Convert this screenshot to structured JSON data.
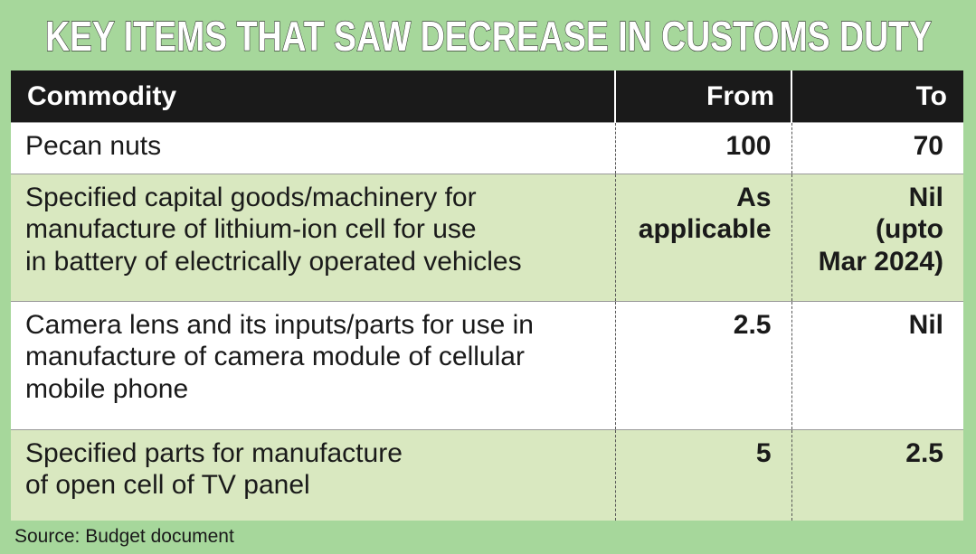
{
  "header": {
    "title": "KEY ITEMS THAT SAW DECREASE IN CUSTOMS DUTY"
  },
  "table": {
    "columns": [
      "Commodity",
      "From",
      "To"
    ],
    "rows": [
      [
        "Pecan nuts",
        "100",
        "70"
      ],
      [
        "Specified capital goods/machinery for\nmanufacture of lithium-ion cell for use\nin battery of electrically operated vehicles",
        "As\napplicable",
        "Nil\n(upto\nMar 2024)"
      ],
      [
        "Camera lens and its inputs/parts for use in\nmanufacture of camera module of cellular\nmobile phone",
        "2.5",
        "Nil"
      ],
      [
        "Specified parts for manufacture\nof open cell of TV panel",
        "5",
        "2.5"
      ]
    ]
  },
  "footer": {
    "source": "Source: Budget document"
  }
}
